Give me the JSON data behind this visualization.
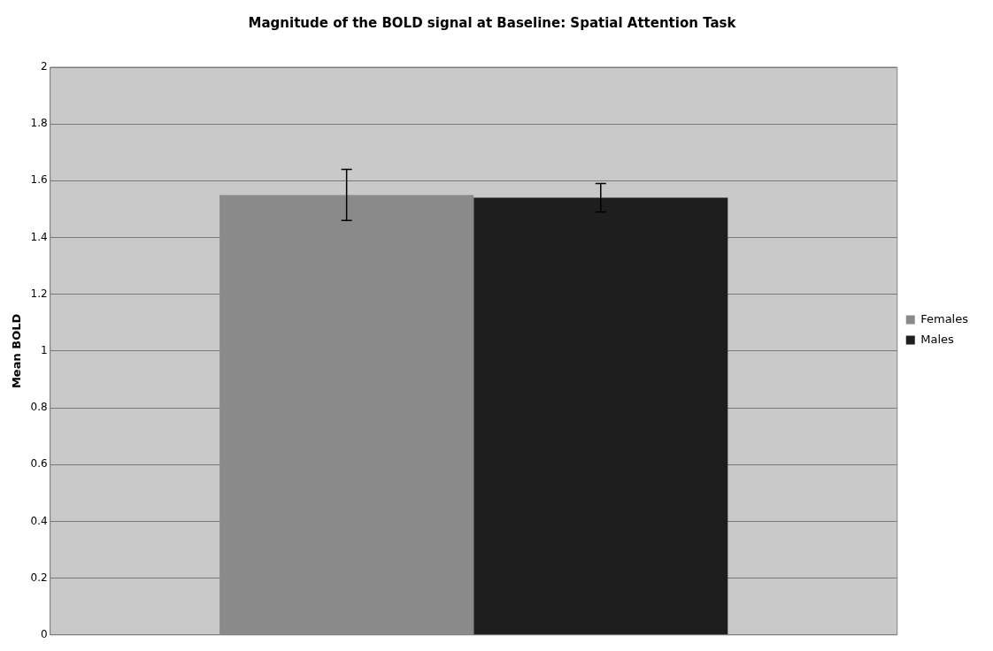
{
  "chart_data": {
    "type": "bar",
    "title": "Magnitude of the BOLD signal at Baseline: Spatial Attention Task",
    "ylabel": "Mean BOLD",
    "categories": [
      null
    ],
    "series": [
      {
        "name": "Females",
        "color": "#8a8a8a",
        "values": [
          1.55
        ],
        "errors": [
          0.09
        ]
      },
      {
        "name": "Males",
        "color": "#1e1e1e",
        "values": [
          1.54
        ],
        "errors": [
          0.05
        ]
      }
    ],
    "ylim": [
      0,
      2
    ],
    "yticks": [
      0,
      0.2,
      0.4,
      0.6,
      0.8,
      1,
      1.2,
      1.4,
      1.6,
      1.8,
      2
    ],
    "grid": "y",
    "legend": "right",
    "tick_labels": "y"
  }
}
